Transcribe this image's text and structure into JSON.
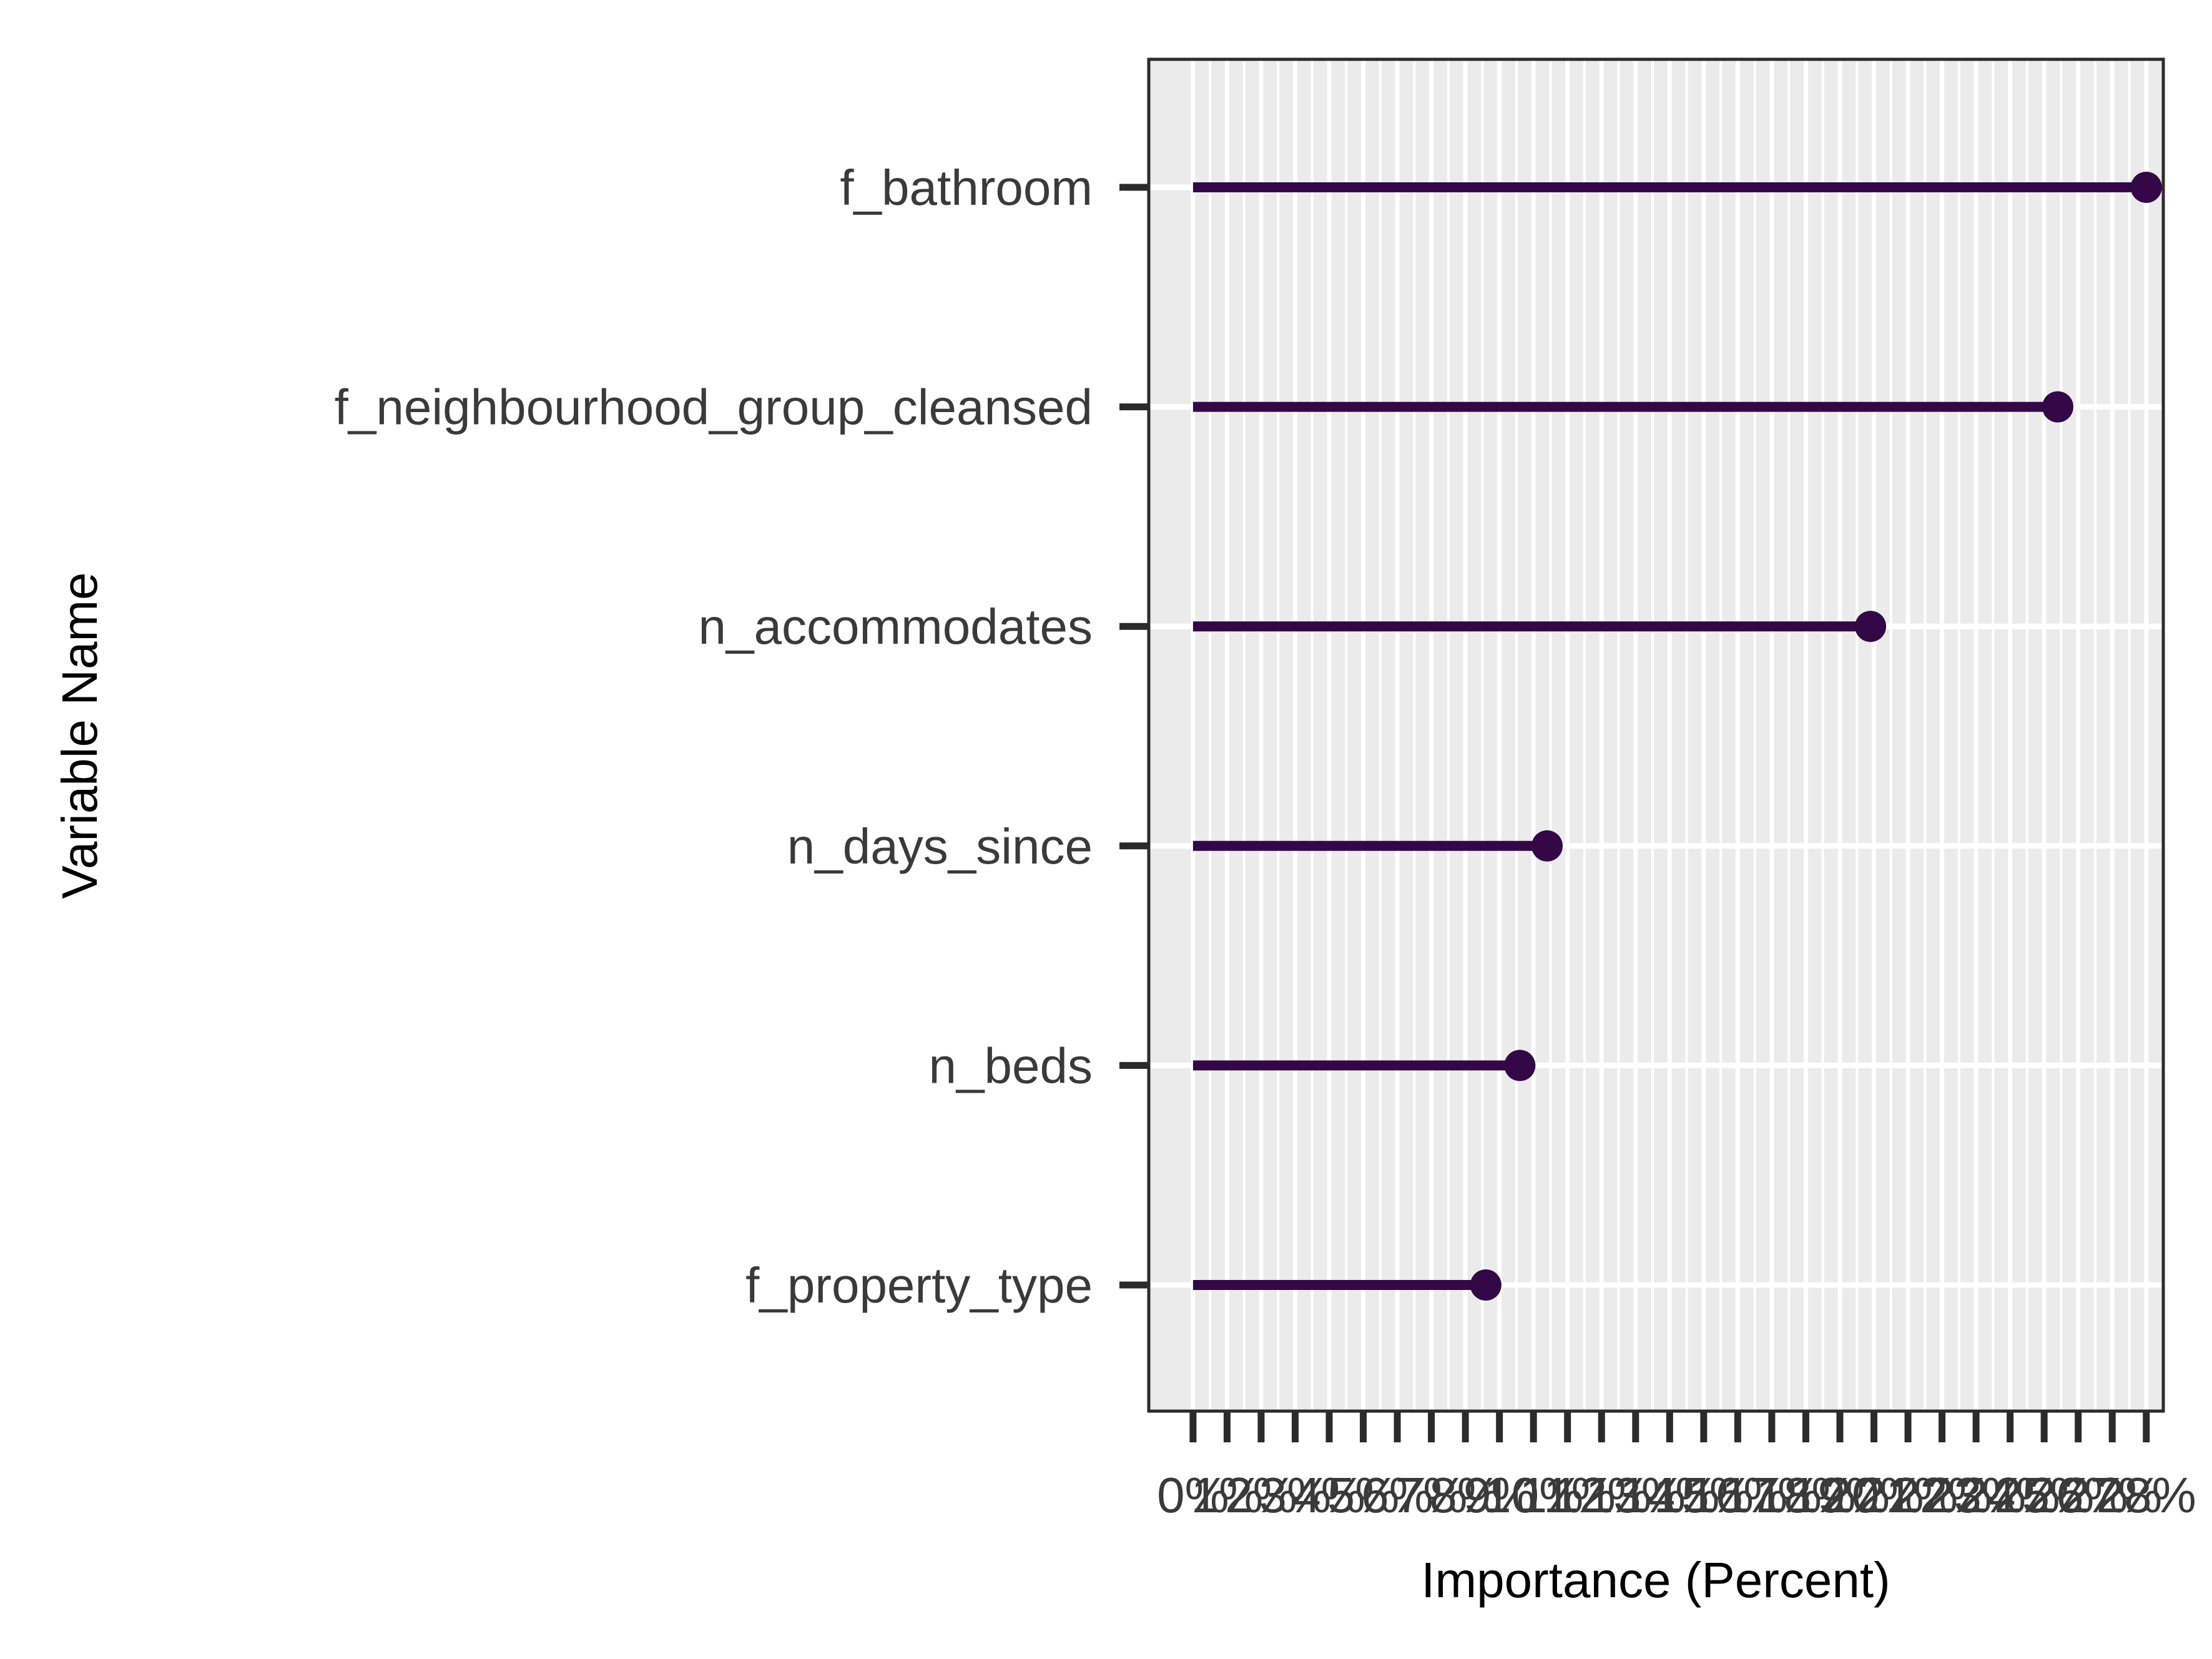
{
  "chart_data": {
    "type": "lollipop",
    "xlabel": "Importance (Percent)",
    "ylabel": "Variable Name",
    "xlim": [
      -1.3,
      28.5
    ],
    "x_tick_values": [
      0,
      1,
      2,
      3,
      4,
      5,
      6,
      7,
      8,
      9,
      10,
      11,
      12,
      13,
      14,
      15,
      16,
      17,
      18,
      19,
      20,
      21,
      22,
      23,
      24,
      25,
      26,
      27,
      28
    ],
    "x_tick_suffix": "%",
    "grid": true,
    "categories": [
      "f_bathroom",
      "f_neighbourhood_group_cleansed",
      "n_accommodates",
      "n_days_since",
      "n_beds",
      "f_property_type"
    ],
    "values": [
      28.0,
      25.4,
      19.9,
      10.4,
      9.6,
      8.6
    ],
    "colors": {
      "mark": "#340747",
      "panel_bg": "#ebebeb",
      "grid": "#ffffff",
      "axis": "#2b2b2b"
    }
  }
}
